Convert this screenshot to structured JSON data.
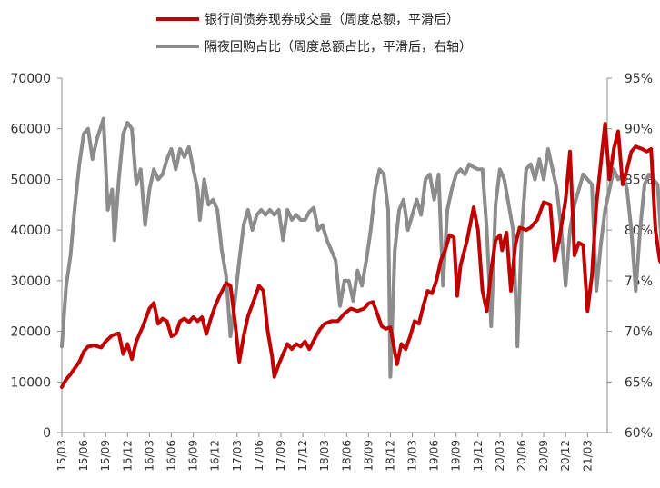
{
  "chart_data": {
    "type": "line",
    "title": "",
    "xlabel": "",
    "ylabel": "",
    "x_ticks": [
      "15/03",
      "15/06",
      "15/09",
      "15/12",
      "16/03",
      "16/06",
      "16/09",
      "16/12",
      "17/03",
      "17/06",
      "17/09",
      "17/12",
      "18/03",
      "18/06",
      "18/09",
      "18/12",
      "19/03",
      "19/06",
      "19/09",
      "19/12",
      "20/03",
      "20/06",
      "20/09",
      "20/12",
      "21/03"
    ],
    "y_left": {
      "ylim": [
        0,
        70000
      ],
      "ticks": [
        "0",
        "10000",
        "20000",
        "30000",
        "40000",
        "50000",
        "60000",
        "70000"
      ]
    },
    "y_right": {
      "ylim": [
        60,
        95
      ],
      "ticks": [
        "60%",
        "65%",
        "70%",
        "75%",
        "80%",
        "85%",
        "90%",
        "95%"
      ]
    },
    "grid": false,
    "legend_position": "top-center",
    "series": [
      {
        "name": "银行间债券现券成交量（周度总额，平滑后）",
        "axis": "left",
        "color": "#c00000",
        "points": [
          [
            0,
            9000
          ],
          [
            0.2,
            10500
          ],
          [
            0.4,
            11500
          ],
          [
            0.6,
            12800
          ],
          [
            0.8,
            14000
          ],
          [
            1.0,
            16000
          ],
          [
            1.2,
            17000
          ],
          [
            1.5,
            17200
          ],
          [
            1.8,
            16800
          ],
          [
            2.0,
            18000
          ],
          [
            2.3,
            19200
          ],
          [
            2.6,
            19600
          ],
          [
            2.8,
            15500
          ],
          [
            3.0,
            17500
          ],
          [
            3.2,
            14500
          ],
          [
            3.4,
            18000
          ],
          [
            3.7,
            21000
          ],
          [
            4.0,
            24500
          ],
          [
            4.2,
            25600
          ],
          [
            4.4,
            21500
          ],
          [
            4.6,
            22500
          ],
          [
            4.8,
            22000
          ],
          [
            5.0,
            19000
          ],
          [
            5.2,
            19500
          ],
          [
            5.4,
            22000
          ],
          [
            5.6,
            22500
          ],
          [
            5.8,
            21800
          ],
          [
            6.0,
            22800
          ],
          [
            6.2,
            22000
          ],
          [
            6.4,
            22800
          ],
          [
            6.6,
            19500
          ],
          [
            6.8,
            22500
          ],
          [
            7.0,
            25000
          ],
          [
            7.2,
            27000
          ],
          [
            7.5,
            29500
          ],
          [
            7.7,
            29000
          ],
          [
            7.9,
            22000
          ],
          [
            8.1,
            14000
          ],
          [
            8.3,
            19000
          ],
          [
            8.5,
            23000
          ],
          [
            8.8,
            26500
          ],
          [
            9.0,
            29000
          ],
          [
            9.2,
            28000
          ],
          [
            9.4,
            20000
          ],
          [
            9.6,
            15000
          ],
          [
            9.7,
            11000
          ],
          [
            9.9,
            13500
          ],
          [
            10.1,
            15500
          ],
          [
            10.3,
            17500
          ],
          [
            10.5,
            16500
          ],
          [
            10.7,
            17500
          ],
          [
            10.9,
            17000
          ],
          [
            11.1,
            18000
          ],
          [
            11.3,
            16500
          ],
          [
            11.6,
            19000
          ],
          [
            11.8,
            20500
          ],
          [
            12.0,
            21500
          ],
          [
            12.3,
            22000
          ],
          [
            12.6,
            22000
          ],
          [
            12.9,
            23500
          ],
          [
            13.2,
            24500
          ],
          [
            13.5,
            24000
          ],
          [
            13.8,
            24500
          ],
          [
            14.0,
            25500
          ],
          [
            14.2,
            25800
          ],
          [
            14.4,
            23500
          ],
          [
            14.6,
            21000
          ],
          [
            14.8,
            20500
          ],
          [
            15.0,
            20800
          ],
          [
            15.3,
            13500
          ],
          [
            15.5,
            17500
          ],
          [
            15.7,
            16500
          ],
          [
            15.9,
            19000
          ],
          [
            16.1,
            22000
          ],
          [
            16.3,
            21500
          ],
          [
            16.5,
            25000
          ],
          [
            16.7,
            28000
          ],
          [
            16.9,
            27500
          ],
          [
            17.1,
            30000
          ],
          [
            17.3,
            34000
          ],
          [
            17.5,
            36000
          ],
          [
            17.7,
            39000
          ],
          [
            17.9,
            38500
          ],
          [
            18.05,
            27000
          ],
          [
            18.2,
            33000
          ],
          [
            18.5,
            38000
          ],
          [
            18.8,
            44500
          ],
          [
            19.0,
            40000
          ],
          [
            19.2,
            28000
          ],
          [
            19.4,
            24000
          ],
          [
            19.6,
            32000
          ],
          [
            19.8,
            38000
          ],
          [
            20.0,
            39000
          ],
          [
            20.1,
            36000
          ],
          [
            20.3,
            39500
          ],
          [
            20.5,
            28000
          ],
          [
            20.7,
            37000
          ],
          [
            20.9,
            40500
          ],
          [
            21.2,
            40000
          ],
          [
            21.4,
            40500
          ],
          [
            21.7,
            42000
          ],
          [
            22.0,
            45500
          ],
          [
            22.3,
            45000
          ],
          [
            22.5,
            34000
          ],
          [
            22.7,
            38000
          ],
          [
            23.0,
            46000
          ],
          [
            23.2,
            55500
          ],
          [
            23.4,
            35000
          ],
          [
            23.6,
            37500
          ],
          [
            23.8,
            37000
          ],
          [
            24.0,
            24000
          ],
          [
            24.2,
            31000
          ],
          [
            24.4,
            45000
          ],
          [
            24.6,
            53000
          ],
          [
            24.8,
            61000
          ],
          [
            25.0,
            50000
          ],
          [
            25.2,
            56000
          ],
          [
            25.4,
            59500
          ],
          [
            25.6,
            49000
          ],
          [
            25.8,
            52000
          ],
          [
            26.0,
            55500
          ],
          [
            26.2,
            56500
          ],
          [
            26.5,
            56000
          ],
          [
            26.7,
            55500
          ],
          [
            26.9,
            56000
          ],
          [
            27.1,
            40000
          ],
          [
            27.3,
            34000
          ],
          [
            27.5,
            32500
          ],
          [
            27.8,
            32000
          ],
          [
            28.0,
            33000
          ],
          [
            28.2,
            30000
          ],
          [
            28.4,
            35000
          ],
          [
            28.6,
            38000
          ],
          [
            28.8,
            28000
          ],
          [
            29.0,
            31000
          ],
          [
            29.2,
            34500
          ],
          [
            29.4,
            36500
          ],
          [
            29.6,
            35500
          ],
          [
            29.8,
            38500
          ],
          [
            29.9,
            37500
          ]
        ]
      },
      {
        "name": "隔夜回购占比（周度总额占比，平滑后，右轴）",
        "axis": "right",
        "color": "#8c8c8c",
        "points": [
          [
            0,
            68.5
          ],
          [
            0.2,
            74.5
          ],
          [
            0.4,
            77.5
          ],
          [
            0.6,
            82.5
          ],
          [
            0.8,
            86.5
          ],
          [
            1.0,
            89.5
          ],
          [
            1.2,
            90
          ],
          [
            1.4,
            87
          ],
          [
            1.6,
            89
          ],
          [
            1.8,
            90.3
          ],
          [
            1.9,
            91
          ],
          [
            2.1,
            82
          ],
          [
            2.3,
            84
          ],
          [
            2.4,
            79
          ],
          [
            2.6,
            85
          ],
          [
            2.8,
            89.5
          ],
          [
            3.0,
            90.6
          ],
          [
            3.2,
            90
          ],
          [
            3.4,
            84.5
          ],
          [
            3.6,
            86
          ],
          [
            3.8,
            80.5
          ],
          [
            4.0,
            84
          ],
          [
            4.2,
            86
          ],
          [
            4.4,
            85
          ],
          [
            4.6,
            85.5
          ],
          [
            4.8,
            87
          ],
          [
            5.0,
            88
          ],
          [
            5.2,
            86
          ],
          [
            5.4,
            88
          ],
          [
            5.6,
            87.2
          ],
          [
            5.8,
            88.2
          ],
          [
            6.0,
            86
          ],
          [
            6.2,
            84
          ],
          [
            6.3,
            81
          ],
          [
            6.5,
            85
          ],
          [
            6.7,
            82.5
          ],
          [
            6.9,
            83
          ],
          [
            7.1,
            82
          ],
          [
            7.3,
            78
          ],
          [
            7.5,
            75.5
          ],
          [
            7.7,
            69.5
          ],
          [
            7.9,
            73
          ],
          [
            8.1,
            77
          ],
          [
            8.3,
            80.5
          ],
          [
            8.5,
            82
          ],
          [
            8.7,
            80
          ],
          [
            8.9,
            81.5
          ],
          [
            9.1,
            82
          ],
          [
            9.3,
            81.5
          ],
          [
            9.5,
            82
          ],
          [
            9.7,
            81.5
          ],
          [
            9.9,
            82
          ],
          [
            10.1,
            79
          ],
          [
            10.3,
            82
          ],
          [
            10.5,
            81
          ],
          [
            10.7,
            81.5
          ],
          [
            10.9,
            81
          ],
          [
            11.1,
            81
          ],
          [
            11.3,
            81.8
          ],
          [
            11.5,
            82.2
          ],
          [
            11.7,
            80
          ],
          [
            11.9,
            80.5
          ],
          [
            12.1,
            79
          ],
          [
            12.3,
            78
          ],
          [
            12.5,
            77
          ],
          [
            12.7,
            72.5
          ],
          [
            12.9,
            75
          ],
          [
            13.1,
            75
          ],
          [
            13.3,
            73
          ],
          [
            13.5,
            76
          ],
          [
            13.7,
            74.5
          ],
          [
            13.9,
            77
          ],
          [
            14.1,
            80
          ],
          [
            14.3,
            84
          ],
          [
            14.5,
            86
          ],
          [
            14.7,
            85.5
          ],
          [
            14.9,
            82
          ],
          [
            15.0,
            65.5
          ],
          [
            15.2,
            78
          ],
          [
            15.4,
            82
          ],
          [
            15.6,
            83
          ],
          [
            15.8,
            80
          ],
          [
            16.0,
            81.5
          ],
          [
            16.2,
            83
          ],
          [
            16.4,
            81.5
          ],
          [
            16.6,
            85
          ],
          [
            16.8,
            85.5
          ],
          [
            17.0,
            83
          ],
          [
            17.2,
            85.5
          ],
          [
            17.4,
            74.5
          ],
          [
            17.6,
            82
          ],
          [
            17.8,
            84
          ],
          [
            18.0,
            85.5
          ],
          [
            18.2,
            86
          ],
          [
            18.4,
            85.5
          ],
          [
            18.6,
            86.5
          ],
          [
            18.8,
            86.2
          ],
          [
            19.0,
            86
          ],
          [
            19.2,
            86
          ],
          [
            19.4,
            80
          ],
          [
            19.6,
            70.5
          ],
          [
            19.8,
            82.5
          ],
          [
            20.0,
            86
          ],
          [
            20.2,
            85
          ],
          [
            20.4,
            82.5
          ],
          [
            20.6,
            80
          ],
          [
            20.8,
            68.5
          ],
          [
            21.0,
            80
          ],
          [
            21.2,
            86
          ],
          [
            21.4,
            86.5
          ],
          [
            21.6,
            85
          ],
          [
            21.8,
            87
          ],
          [
            22.0,
            85
          ],
          [
            22.2,
            88
          ],
          [
            22.4,
            86
          ],
          [
            22.6,
            84
          ],
          [
            22.8,
            80
          ],
          [
            23.0,
            74.5
          ],
          [
            23.2,
            80
          ],
          [
            23.4,
            82.5
          ],
          [
            23.6,
            84
          ],
          [
            23.8,
            85.5
          ],
          [
            24.0,
            85
          ],
          [
            24.2,
            84.5
          ],
          [
            24.4,
            74
          ],
          [
            24.6,
            78.5
          ],
          [
            24.8,
            82
          ],
          [
            25.0,
            84
          ],
          [
            25.2,
            86
          ],
          [
            25.4,
            85
          ],
          [
            25.6,
            85.5
          ],
          [
            25.8,
            84
          ],
          [
            26.0,
            80
          ],
          [
            26.2,
            74
          ],
          [
            26.4,
            80
          ],
          [
            26.6,
            84.5
          ],
          [
            26.8,
            85.5
          ],
          [
            27.0,
            85
          ],
          [
            27.2,
            84.5
          ],
          [
            27.4,
            78
          ],
          [
            27.6,
            77
          ],
          [
            27.8,
            83.5
          ],
          [
            28.0,
            86.5
          ],
          [
            28.2,
            85.5
          ],
          [
            28.4,
            84.5
          ],
          [
            28.6,
            82
          ],
          [
            28.8,
            77.5
          ],
          [
            29.0,
            78
          ],
          [
            29.2,
            83
          ],
          [
            29.4,
            83.5
          ],
          [
            29.6,
            83
          ],
          [
            29.8,
            81
          ],
          [
            29.9,
            80
          ]
        ]
      }
    ]
  }
}
